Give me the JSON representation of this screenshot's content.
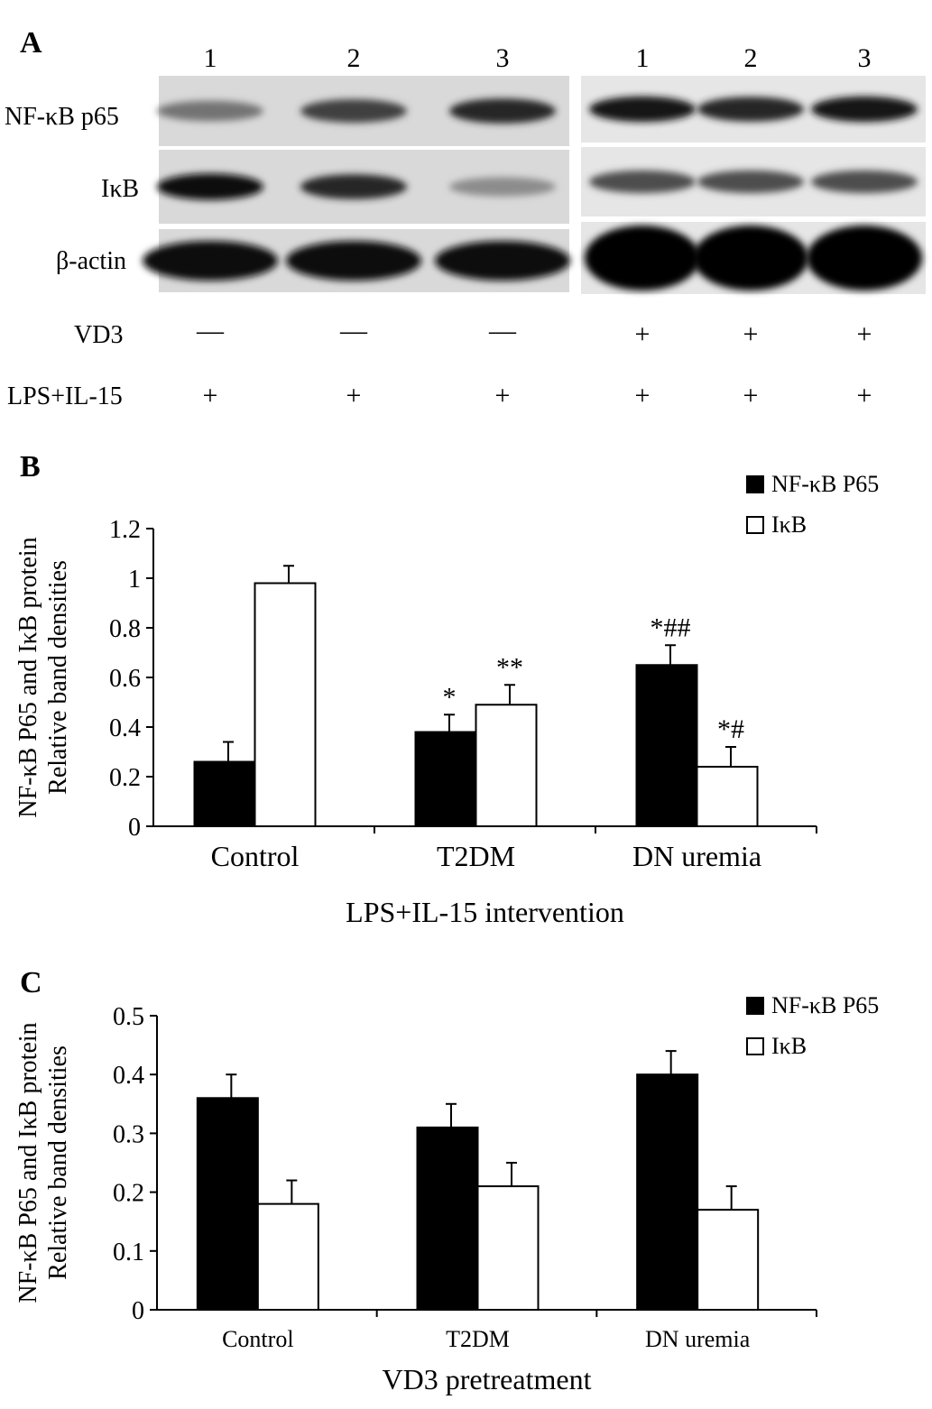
{
  "panel_a": {
    "label": "A",
    "lanes_left": [
      "1",
      "2",
      "3"
    ],
    "lanes_right": [
      "1",
      "2",
      "3"
    ],
    "row_labels": [
      "NF-κB p65",
      "IκB",
      "β-actin"
    ],
    "treatment_rows": [
      {
        "label": "VD3",
        "values": [
          "—",
          "—",
          "—",
          "+",
          "+",
          "+"
        ]
      },
      {
        "label": "LPS+IL-15",
        "values": [
          "+",
          "+",
          "+",
          "+",
          "+",
          "+"
        ]
      }
    ],
    "band_intensity": {
      "left": {
        "NF-κB p65": [
          0.55,
          0.75,
          0.85
        ],
        "IκB": [
          0.95,
          0.85,
          0.45
        ],
        "β-actin": [
          0.95,
          0.95,
          0.95
        ]
      },
      "right": {
        "NF-κB p65": [
          0.9,
          0.85,
          0.9
        ],
        "IκB": [
          0.7,
          0.7,
          0.7
        ],
        "β-actin": [
          1.0,
          1.0,
          1.0
        ]
      }
    }
  },
  "chart_data": [
    {
      "panel": "B",
      "type": "bar",
      "categories": [
        "Control",
        "T2DM",
        "DN uremia"
      ],
      "series": [
        {
          "name": "NF-κB P65",
          "color": "#000000",
          "values": [
            0.26,
            0.38,
            0.65
          ],
          "errors": [
            0.08,
            0.07,
            0.08
          ]
        },
        {
          "name": "IκB",
          "color": "#ffffff",
          "values": [
            0.98,
            0.49,
            0.24
          ],
          "errors": [
            0.07,
            0.08,
            0.08
          ]
        }
      ],
      "annotations": [
        {
          "category": "T2DM",
          "series": "NF-κB P65",
          "text": "*"
        },
        {
          "category": "T2DM",
          "series": "IκB",
          "text": "**"
        },
        {
          "category": "DN uremia",
          "series": "NF-κB P65",
          "text": "*##"
        },
        {
          "category": "DN uremia",
          "series": "IκB",
          "text": "*#"
        }
      ],
      "xlabel": "LPS+IL-15 intervention",
      "ylabel": [
        "NF-κB  P65 and IκB protein",
        "Relative band densities"
      ],
      "ylim": [
        0,
        1.2
      ],
      "yticks": [
        "0",
        "0.2",
        "0.4",
        "0.6",
        "0.8",
        "1",
        "1.2"
      ],
      "legend": "top-right",
      "grid": false
    },
    {
      "panel": "C",
      "type": "bar",
      "categories": [
        "Control",
        "T2DM",
        "DN uremia"
      ],
      "series": [
        {
          "name": "NF-κB P65",
          "color": "#000000",
          "values": [
            0.36,
            0.31,
            0.4
          ],
          "errors": [
            0.04,
            0.04,
            0.04
          ]
        },
        {
          "name": "IκB",
          "color": "#ffffff",
          "values": [
            0.18,
            0.21,
            0.17
          ],
          "errors": [
            0.04,
            0.04,
            0.04
          ]
        }
      ],
      "annotations": [],
      "xlabel": "VD3 pretreatment",
      "ylabel": [
        "NF-κB  P65 and IκB protein",
        "Relative band densities"
      ],
      "ylim": [
        0,
        0.5
      ],
      "yticks": [
        "0",
        "0.1",
        "0.2",
        "0.3",
        "0.4",
        "0.5"
      ],
      "legend": "top-right",
      "grid": false
    }
  ]
}
